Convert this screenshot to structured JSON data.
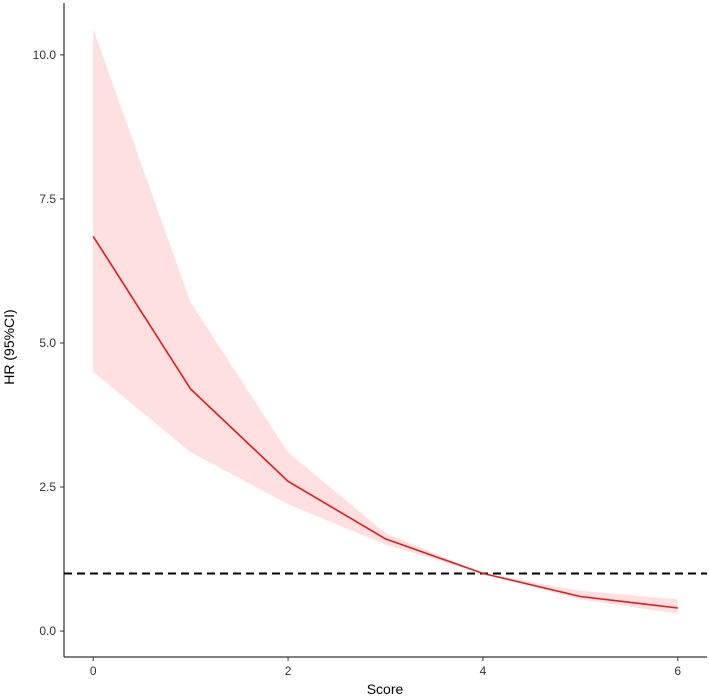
{
  "chart_data": {
    "type": "line",
    "title": "",
    "xlabel": "Score",
    "ylabel": "HR (95%CI)",
    "xlim": [
      -0.3,
      6.3
    ],
    "ylim": [
      -0.45,
      10.9
    ],
    "x_ticks": [
      0,
      2,
      4,
      6
    ],
    "x_tick_labels": [
      "0",
      "2",
      "4",
      "6"
    ],
    "y_ticks": [
      0.0,
      2.5,
      5.0,
      7.5,
      10.0
    ],
    "y_tick_labels": [
      "0.0",
      "2.5",
      "5.0",
      "7.5",
      "10.0"
    ],
    "grid": false,
    "legend": "none",
    "series": [
      {
        "x": [
          0,
          1,
          2,
          3,
          4,
          5,
          6
        ],
        "y": [
          6.85,
          4.2,
          2.6,
          1.6,
          1.0,
          0.6,
          0.4
        ],
        "ci_lower": [
          4.5,
          3.1,
          2.2,
          1.5,
          1.0,
          0.55,
          0.3
        ],
        "ci_upper": [
          10.45,
          5.7,
          3.1,
          1.7,
          1.0,
          0.7,
          0.55
        ],
        "color": "#e41a1c",
        "band_color": "#ffe0e1"
      }
    ],
    "reference_line": {
      "y": 1.0,
      "style": "dashed",
      "color": "#000000"
    }
  }
}
